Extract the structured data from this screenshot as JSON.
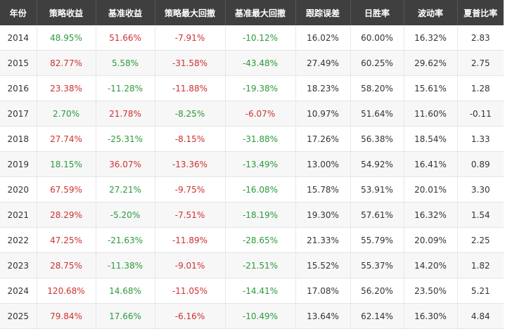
{
  "colors": {
    "positive": "#d03030",
    "negative": "#2a9a3a",
    "header_bg": "#3f3f3f"
  },
  "table": {
    "headers": [
      "年份",
      "策略收益",
      "基准收益",
      "策略最大回撤",
      "基准最大回撤",
      "跟踪误差",
      "日胜率",
      "波动率",
      "夏普比率"
    ],
    "rows": [
      [
        "2014",
        "48.95%",
        "51.66%",
        "-7.91%",
        "-10.12%",
        "16.02%",
        "60.00%",
        "16.32%",
        "2.83"
      ],
      [
        "2015",
        "82.77%",
        "5.58%",
        "-31.58%",
        "-43.48%",
        "27.49%",
        "60.25%",
        "29.62%",
        "2.75"
      ],
      [
        "2016",
        "23.38%",
        "-11.28%",
        "-11.88%",
        "-19.38%",
        "18.23%",
        "58.20%",
        "15.61%",
        "1.28"
      ],
      [
        "2017",
        "2.70%",
        "21.78%",
        "-8.25%",
        "-6.07%",
        "10.97%",
        "51.64%",
        "11.60%",
        "-0.11"
      ],
      [
        "2018",
        "27.74%",
        "-25.31%",
        "-8.15%",
        "-31.88%",
        "17.26%",
        "56.38%",
        "18.54%",
        "1.33"
      ],
      [
        "2019",
        "18.15%",
        "36.07%",
        "-13.36%",
        "-13.49%",
        "13.00%",
        "54.92%",
        "16.41%",
        "0.89"
      ],
      [
        "2020",
        "67.59%",
        "27.21%",
        "-9.75%",
        "-16.08%",
        "15.78%",
        "53.91%",
        "20.01%",
        "3.30"
      ],
      [
        "2021",
        "28.29%",
        "-5.20%",
        "-7.51%",
        "-18.19%",
        "19.30%",
        "57.61%",
        "16.32%",
        "1.54"
      ],
      [
        "2022",
        "47.25%",
        "-21.63%",
        "-11.89%",
        "-28.65%",
        "21.33%",
        "55.79%",
        "20.09%",
        "2.25"
      ],
      [
        "2023",
        "28.75%",
        "-11.38%",
        "-9.01%",
        "-21.51%",
        "15.52%",
        "55.37%",
        "14.20%",
        "1.82"
      ],
      [
        "2024",
        "120.68%",
        "14.68%",
        "-11.05%",
        "-14.41%",
        "17.08%",
        "56.20%",
        "23.50%",
        "5.21"
      ],
      [
        "2025",
        "79.84%",
        "17.66%",
        "-6.16%",
        "-10.49%",
        "13.64%",
        "62.14%",
        "16.30%",
        "4.84"
      ]
    ],
    "cell_color": [
      [
        "plain",
        "neg",
        "pos",
        "pos",
        "neg",
        "plain",
        "plain",
        "plain",
        "plain"
      ],
      [
        "plain",
        "pos",
        "neg",
        "pos",
        "neg",
        "plain",
        "plain",
        "plain",
        "plain"
      ],
      [
        "plain",
        "pos",
        "neg",
        "pos",
        "neg",
        "plain",
        "plain",
        "plain",
        "plain"
      ],
      [
        "plain",
        "neg",
        "pos",
        "neg",
        "pos",
        "plain",
        "plain",
        "plain",
        "plain"
      ],
      [
        "plain",
        "pos",
        "neg",
        "pos",
        "neg",
        "plain",
        "plain",
        "plain",
        "plain"
      ],
      [
        "plain",
        "neg",
        "pos",
        "pos",
        "neg",
        "plain",
        "plain",
        "plain",
        "plain"
      ],
      [
        "plain",
        "pos",
        "neg",
        "pos",
        "neg",
        "plain",
        "plain",
        "plain",
        "plain"
      ],
      [
        "plain",
        "pos",
        "neg",
        "pos",
        "neg",
        "plain",
        "plain",
        "plain",
        "plain"
      ],
      [
        "plain",
        "pos",
        "neg",
        "pos",
        "neg",
        "plain",
        "plain",
        "plain",
        "plain"
      ],
      [
        "plain",
        "pos",
        "neg",
        "pos",
        "neg",
        "plain",
        "plain",
        "plain",
        "plain"
      ],
      [
        "plain",
        "pos",
        "neg",
        "pos",
        "neg",
        "plain",
        "plain",
        "plain",
        "plain"
      ],
      [
        "plain",
        "pos",
        "neg",
        "pos",
        "neg",
        "plain",
        "plain",
        "plain",
        "plain"
      ]
    ]
  }
}
